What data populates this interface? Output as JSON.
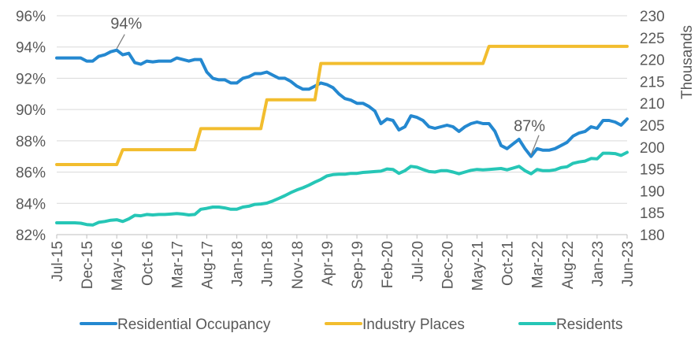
{
  "chart_data": {
    "type": "line",
    "title": "",
    "x_label": "",
    "x_ticks": [
      "Jul-15",
      "Dec-15",
      "May-16",
      "Oct-16",
      "Mar-17",
      "Aug-17",
      "Jan-18",
      "Jun-18",
      "Nov-18",
      "Apr-19",
      "Sep-19",
      "Feb-20",
      "Jul-20",
      "Dec-20",
      "May-21",
      "Oct-21",
      "Mar-22",
      "Aug-22",
      "Jan-23",
      "Jun-23"
    ],
    "y_left": {
      "min": 82,
      "max": 96,
      "step": 2,
      "tick_labels": [
        "82%",
        "84%",
        "86%",
        "88%",
        "90%",
        "92%",
        "94%",
        "96%"
      ]
    },
    "y_right": {
      "label": "Thousands",
      "min": 180,
      "max": 230,
      "step": 5,
      "tick_labels": [
        "180",
        "185",
        "190",
        "195",
        "200",
        "205",
        "210",
        "215",
        "220",
        "225",
        "230"
      ]
    },
    "grid": true,
    "legend_position": "bottom",
    "annotations": [
      {
        "text": "94%",
        "date": "2016-05",
        "value": 93.8,
        "axis": "left"
      },
      {
        "text": "87%",
        "date": "2022-02",
        "value": 87.0,
        "axis": "left"
      }
    ],
    "series": [
      {
        "name": "Residential Occupancy",
        "axis": "left",
        "color": "#2488d0",
        "points": [
          [
            "2015-07",
            93.3
          ],
          [
            "2015-08",
            93.3
          ],
          [
            "2015-09",
            93.3
          ],
          [
            "2015-10",
            93.3
          ],
          [
            "2015-11",
            93.3
          ],
          [
            "2015-12",
            93.1
          ],
          [
            "2016-01",
            93.1
          ],
          [
            "2016-02",
            93.4
          ],
          [
            "2016-03",
            93.5
          ],
          [
            "2016-04",
            93.7
          ],
          [
            "2016-05",
            93.8
          ],
          [
            "2016-06",
            93.5
          ],
          [
            "2016-07",
            93.6
          ],
          [
            "2016-08",
            93.0
          ],
          [
            "2016-09",
            92.9
          ],
          [
            "2016-10",
            93.1
          ],
          [
            "2016-11",
            93.05
          ],
          [
            "2016-12",
            93.1
          ],
          [
            "2017-01",
            93.1
          ],
          [
            "2017-02",
            93.1
          ],
          [
            "2017-03",
            93.3
          ],
          [
            "2017-04",
            93.2
          ],
          [
            "2017-05",
            93.1
          ],
          [
            "2017-06",
            93.2
          ],
          [
            "2017-07",
            93.2
          ],
          [
            "2017-08",
            92.4
          ],
          [
            "2017-09",
            92.0
          ],
          [
            "2017-10",
            91.9
          ],
          [
            "2017-11",
            91.9
          ],
          [
            "2017-12",
            91.7
          ],
          [
            "2018-01",
            91.7
          ],
          [
            "2018-02",
            92.0
          ],
          [
            "2018-03",
            92.1
          ],
          [
            "2018-04",
            92.3
          ],
          [
            "2018-05",
            92.3
          ],
          [
            "2018-06",
            92.4
          ],
          [
            "2018-07",
            92.2
          ],
          [
            "2018-08",
            92.0
          ],
          [
            "2018-09",
            92.0
          ],
          [
            "2018-10",
            91.8
          ],
          [
            "2018-11",
            91.5
          ],
          [
            "2018-12",
            91.3
          ],
          [
            "2019-01",
            91.3
          ],
          [
            "2019-02",
            91.5
          ],
          [
            "2019-03",
            91.7
          ],
          [
            "2019-04",
            91.6
          ],
          [
            "2019-05",
            91.4
          ],
          [
            "2019-06",
            91.0
          ],
          [
            "2019-07",
            90.7
          ],
          [
            "2019-08",
            90.6
          ],
          [
            "2019-09",
            90.4
          ],
          [
            "2019-10",
            90.4
          ],
          [
            "2019-11",
            90.2
          ],
          [
            "2019-12",
            89.9
          ],
          [
            "2020-01",
            89.1
          ],
          [
            "2020-02",
            89.4
          ],
          [
            "2020-03",
            89.3
          ],
          [
            "2020-04",
            88.7
          ],
          [
            "2020-05",
            88.9
          ],
          [
            "2020-06",
            89.6
          ],
          [
            "2020-07",
            89.5
          ],
          [
            "2020-08",
            89.3
          ],
          [
            "2020-09",
            88.9
          ],
          [
            "2020-10",
            88.8
          ],
          [
            "2020-11",
            88.9
          ],
          [
            "2020-12",
            89.0
          ],
          [
            "2021-01",
            88.9
          ],
          [
            "2021-02",
            88.6
          ],
          [
            "2021-03",
            88.9
          ],
          [
            "2021-04",
            89.1
          ],
          [
            "2021-05",
            89.2
          ],
          [
            "2021-06",
            89.1
          ],
          [
            "2021-07",
            89.1
          ],
          [
            "2021-08",
            88.6
          ],
          [
            "2021-09",
            87.7
          ],
          [
            "2021-10",
            87.5
          ],
          [
            "2021-11",
            87.8
          ],
          [
            "2021-12",
            88.1
          ],
          [
            "2022-01",
            87.5
          ],
          [
            "2022-02",
            87.0
          ],
          [
            "2022-03",
            87.5
          ],
          [
            "2022-04",
            87.4
          ],
          [
            "2022-05",
            87.4
          ],
          [
            "2022-06",
            87.5
          ],
          [
            "2022-07",
            87.7
          ],
          [
            "2022-08",
            87.9
          ],
          [
            "2022-09",
            88.3
          ],
          [
            "2022-10",
            88.5
          ],
          [
            "2022-11",
            88.6
          ],
          [
            "2022-12",
            88.9
          ],
          [
            "2023-01",
            88.8
          ],
          [
            "2023-02",
            89.3
          ],
          [
            "2023-03",
            89.3
          ],
          [
            "2023-04",
            89.2
          ],
          [
            "2023-05",
            89.0
          ],
          [
            "2023-06",
            89.4
          ]
        ]
      },
      {
        "name": "Industry Places",
        "axis": "right",
        "color": "#f2bd2e",
        "points": [
          [
            "2015-07",
            196
          ],
          [
            "2016-05",
            196
          ],
          [
            "2016-06",
            199.4
          ],
          [
            "2017-06",
            199.4
          ],
          [
            "2017-07",
            204.2
          ],
          [
            "2018-05",
            204.2
          ],
          [
            "2018-06",
            210.8
          ],
          [
            "2019-02",
            210.8
          ],
          [
            "2019-03",
            219.1
          ],
          [
            "2021-06",
            219.1
          ],
          [
            "2021-07",
            223
          ],
          [
            "2023-06",
            223
          ]
        ]
      },
      {
        "name": "Residents",
        "axis": "right",
        "color": "#26c6b6",
        "points": [
          [
            "2015-07",
            182.7
          ],
          [
            "2015-08",
            182.7
          ],
          [
            "2015-09",
            182.7
          ],
          [
            "2015-10",
            182.7
          ],
          [
            "2015-11",
            182.6
          ],
          [
            "2015-12",
            182.3
          ],
          [
            "2016-01",
            182.2
          ],
          [
            "2016-02",
            182.8
          ],
          [
            "2016-03",
            183.0
          ],
          [
            "2016-04",
            183.3
          ],
          [
            "2016-05",
            183.4
          ],
          [
            "2016-06",
            183.0
          ],
          [
            "2016-07",
            183.6
          ],
          [
            "2016-08",
            184.4
          ],
          [
            "2016-09",
            184.3
          ],
          [
            "2016-10",
            184.6
          ],
          [
            "2016-11",
            184.5
          ],
          [
            "2016-12",
            184.6
          ],
          [
            "2017-01",
            184.6
          ],
          [
            "2017-02",
            184.7
          ],
          [
            "2017-03",
            184.8
          ],
          [
            "2017-04",
            184.7
          ],
          [
            "2017-05",
            184.5
          ],
          [
            "2017-06",
            184.6
          ],
          [
            "2017-07",
            185.8
          ],
          [
            "2017-08",
            186.0
          ],
          [
            "2017-09",
            186.3
          ],
          [
            "2017-10",
            186.3
          ],
          [
            "2017-11",
            186.1
          ],
          [
            "2017-12",
            185.8
          ],
          [
            "2018-01",
            185.8
          ],
          [
            "2018-02",
            186.3
          ],
          [
            "2018-03",
            186.5
          ],
          [
            "2018-04",
            186.9
          ],
          [
            "2018-05",
            187.0
          ],
          [
            "2018-06",
            187.2
          ],
          [
            "2018-07",
            187.7
          ],
          [
            "2018-08",
            188.3
          ],
          [
            "2018-09",
            188.9
          ],
          [
            "2018-10",
            189.6
          ],
          [
            "2018-11",
            190.2
          ],
          [
            "2018-12",
            190.7
          ],
          [
            "2019-01",
            191.3
          ],
          [
            "2019-02",
            192.0
          ],
          [
            "2019-03",
            192.6
          ],
          [
            "2019-04",
            193.4
          ],
          [
            "2019-05",
            193.7
          ],
          [
            "2019-06",
            193.8
          ],
          [
            "2019-07",
            193.8
          ],
          [
            "2019-08",
            194.0
          ],
          [
            "2019-09",
            194.0
          ],
          [
            "2019-10",
            194.2
          ],
          [
            "2019-11",
            194.3
          ],
          [
            "2019-12",
            194.4
          ],
          [
            "2020-01",
            194.5
          ],
          [
            "2020-02",
            195.0
          ],
          [
            "2020-03",
            194.9
          ],
          [
            "2020-04",
            194.0
          ],
          [
            "2020-05",
            194.6
          ],
          [
            "2020-06",
            195.6
          ],
          [
            "2020-07",
            195.4
          ],
          [
            "2020-08",
            194.9
          ],
          [
            "2020-09",
            194.4
          ],
          [
            "2020-10",
            194.3
          ],
          [
            "2020-11",
            194.6
          ],
          [
            "2020-12",
            194.6
          ],
          [
            "2021-01",
            194.3
          ],
          [
            "2021-02",
            193.9
          ],
          [
            "2021-03",
            194.3
          ],
          [
            "2021-04",
            194.7
          ],
          [
            "2021-05",
            194.9
          ],
          [
            "2021-06",
            194.8
          ],
          [
            "2021-07",
            194.9
          ],
          [
            "2021-08",
            195.0
          ],
          [
            "2021-09",
            195.1
          ],
          [
            "2021-10",
            194.8
          ],
          [
            "2021-11",
            195.2
          ],
          [
            "2021-12",
            195.6
          ],
          [
            "2022-01",
            194.6
          ],
          [
            "2022-02",
            193.9
          ],
          [
            "2022-03",
            194.9
          ],
          [
            "2022-04",
            194.6
          ],
          [
            "2022-05",
            194.6
          ],
          [
            "2022-06",
            194.8
          ],
          [
            "2022-07",
            195.3
          ],
          [
            "2022-08",
            195.5
          ],
          [
            "2022-09",
            196.3
          ],
          [
            "2022-10",
            196.6
          ],
          [
            "2022-11",
            196.8
          ],
          [
            "2022-12",
            197.4
          ],
          [
            "2023-01",
            197.3
          ],
          [
            "2023-02",
            198.6
          ],
          [
            "2023-03",
            198.6
          ],
          [
            "2023-04",
            198.5
          ],
          [
            "2023-05",
            198.1
          ],
          [
            "2023-06",
            198.8
          ]
        ]
      }
    ]
  }
}
